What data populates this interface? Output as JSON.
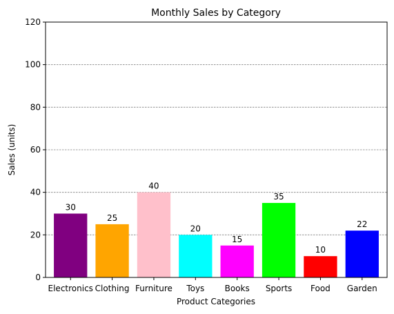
{
  "chart_data": {
    "type": "bar",
    "title": "Monthly Sales by Category",
    "xlabel": "Product Categories",
    "ylabel": "Sales (units)",
    "categories": [
      "Electronics",
      "Clothing",
      "Furniture",
      "Toys",
      "Books",
      "Sports",
      "Food",
      "Garden"
    ],
    "values": [
      30,
      25,
      40,
      20,
      15,
      35,
      10,
      22
    ],
    "colors": [
      "#800080",
      "#ffa500",
      "#ffc0cb",
      "#00ffff",
      "#ff00ff",
      "#00ff00",
      "#ff0000",
      "#0000ff"
    ],
    "ylim": [
      0,
      120
    ],
    "yticks": [
      0,
      20,
      40,
      60,
      80,
      100,
      120
    ],
    "grid": "y-dashed",
    "legend": "none"
  }
}
